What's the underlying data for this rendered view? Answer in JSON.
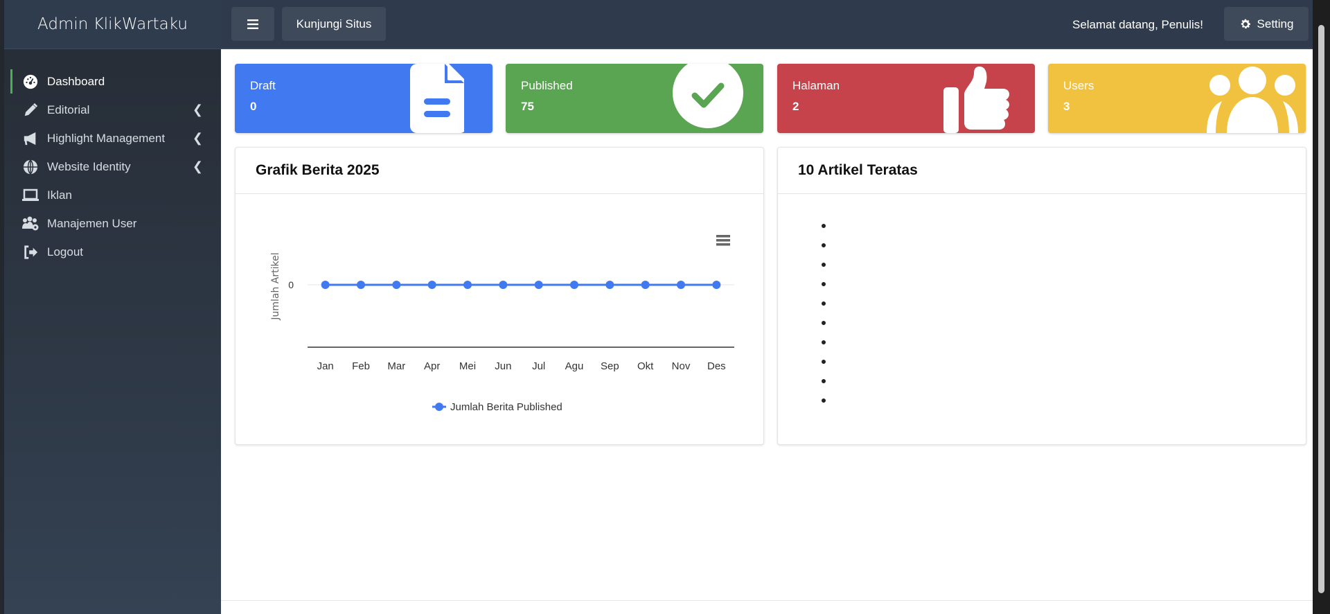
{
  "sidebar": {
    "brand": "Admin KlikWartaku",
    "items": [
      {
        "label": "Dashboard",
        "icon": "gauge-icon",
        "active": true,
        "has_submenu": false
      },
      {
        "label": "Editorial",
        "icon": "pencil-icon",
        "has_submenu": true
      },
      {
        "label": "Highlight Management",
        "icon": "bullhorn-icon",
        "has_submenu": true
      },
      {
        "label": "Website Identity",
        "icon": "globe-icon",
        "has_submenu": true
      },
      {
        "label": "Iklan",
        "icon": "laptop-icon",
        "has_submenu": false
      },
      {
        "label": "Manajemen User",
        "icon": "users-gear-icon",
        "has_submenu": false
      },
      {
        "label": "Logout",
        "icon": "logout-icon",
        "has_submenu": false
      }
    ]
  },
  "topbar": {
    "visit_label": "Kunjungi Situs",
    "welcome": "Selamat datang, Penulis!",
    "setting_label": "Setting"
  },
  "cards": [
    {
      "label": "Draft",
      "value": "0",
      "color": "#4179f0",
      "icon": "file-icon"
    },
    {
      "label": "Published",
      "value": "75",
      "color": "#5aa552",
      "icon": "check-circle-icon"
    },
    {
      "label": "Halaman",
      "value": "2",
      "color": "#c7434b",
      "icon": "thumbs-up-icon"
    },
    {
      "label": "Users",
      "value": "3",
      "color": "#f1c240",
      "icon": "users-icon"
    }
  ],
  "chart_panel": {
    "title": "Grafik Berita 2025"
  },
  "top_panel": {
    "title": "10 Artikel Teratas",
    "items": [
      "",
      "",
      "",
      "",
      "",
      "",
      "",
      "",
      "",
      ""
    ]
  },
  "chart_data": {
    "type": "line",
    "categories": [
      "Jan",
      "Feb",
      "Mar",
      "Apr",
      "Mei",
      "Jun",
      "Jul",
      "Agu",
      "Sep",
      "Okt",
      "Nov",
      "Des"
    ],
    "series": [
      {
        "name": "Jumlah Berita Published",
        "values": [
          0,
          0,
          0,
          0,
          0,
          0,
          0,
          0,
          0,
          0,
          0,
          0
        ],
        "color": "#4179f0"
      }
    ],
    "ylabel": "Jumlah Artikel",
    "yticks": [
      "0"
    ],
    "legend": "bottom"
  }
}
